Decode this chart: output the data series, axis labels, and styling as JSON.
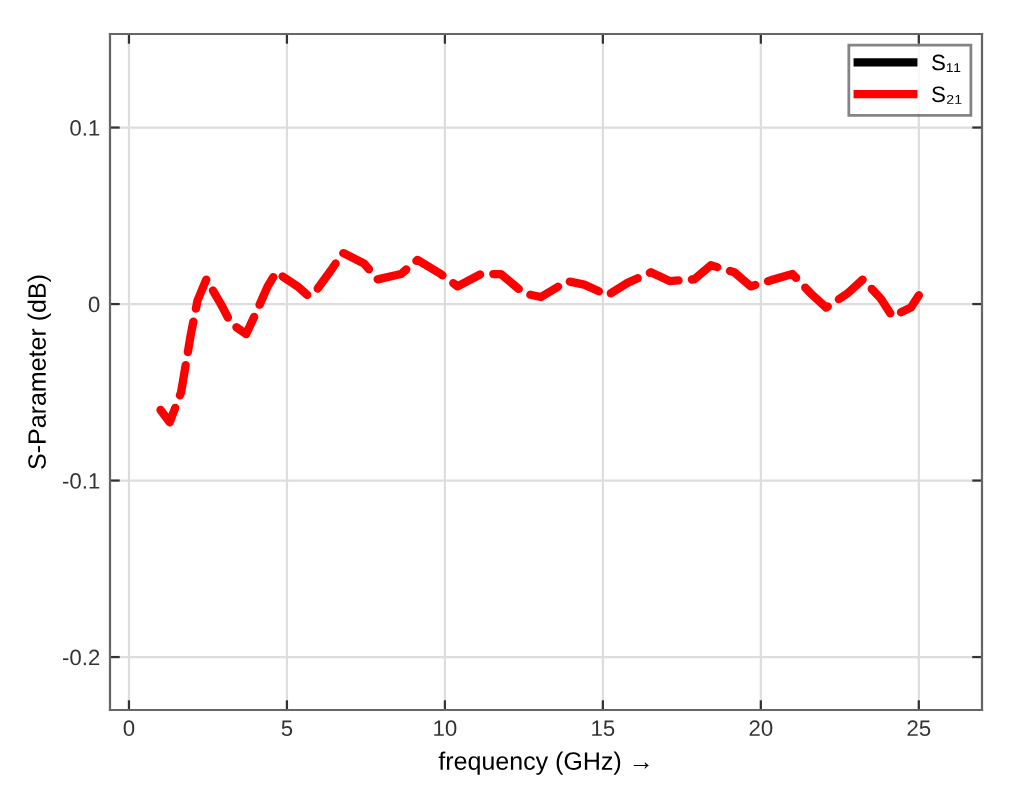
{
  "chart_data": {
    "type": "line",
    "xlabel": "frequency (GHz) →",
    "ylabel": "S-Parameter (dB)",
    "xlim": [
      -0.6,
      27
    ],
    "ylim": [
      -0.23,
      0.153
    ],
    "xticks": [
      0,
      5,
      10,
      15,
      20,
      25
    ],
    "yticks": [
      -0.2,
      -0.1,
      0,
      0.1
    ],
    "grid": true,
    "legend": "top right",
    "series": [
      {
        "name": "S₁₁",
        "color": "#000000",
        "line_style": "solid"
      },
      {
        "name": "S₂₁",
        "color": "#ff0000",
        "line_style": "dashed",
        "x": [
          1.0,
          1.29,
          1.65,
          1.96,
          2.17,
          2.45,
          2.91,
          3.23,
          3.71,
          3.97,
          4.39,
          4.66,
          5.34,
          5.65,
          5.86,
          6.39,
          6.77,
          7.44,
          7.87,
          8.61,
          9.13,
          9.87,
          10.4,
          11.14,
          11.77,
          12.51,
          13.04,
          13.88,
          14.41,
          15.15,
          15.78,
          16.52,
          17.11,
          17.89,
          18.42,
          19.16,
          19.68,
          20.42,
          21.0,
          21.58,
          22.07,
          22.74,
          23.23,
          23.8,
          24.16,
          24.75,
          25.0
        ],
        "values": [
          -0.06,
          -0.067,
          -0.05,
          -0.017,
          0.002,
          0.014,
          0.0,
          -0.011,
          -0.017,
          -0.007,
          0.01,
          0.018,
          0.01,
          0.005,
          0.006,
          0.019,
          0.029,
          0.023,
          0.014,
          0.017,
          0.025,
          0.017,
          0.01,
          0.017,
          0.017,
          0.006,
          0.004,
          0.013,
          0.011,
          0.005,
          0.012,
          0.018,
          0.013,
          0.014,
          0.022,
          0.018,
          0.01,
          0.014,
          0.017,
          0.006,
          -0.002,
          0.006,
          0.014,
          0.003,
          -0.007,
          -0.002,
          0.005
        ]
      }
    ]
  }
}
